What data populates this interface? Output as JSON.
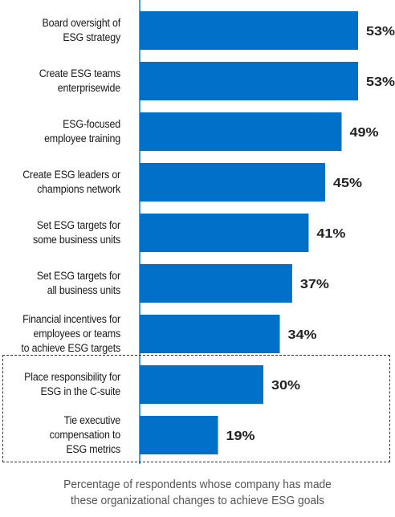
{
  "chart_data": {
    "type": "bar",
    "orientation": "horizontal",
    "categories": [
      [
        "Board oversight of",
        "ESG strategy"
      ],
      [
        "Create ESG teams",
        "enterprisewide"
      ],
      [
        "ESG-focused",
        "employee training"
      ],
      [
        "Create ESG leaders or",
        "champions network"
      ],
      [
        "Set ESG targets for",
        "some business units"
      ],
      [
        "Set ESG targets for",
        "all business units"
      ],
      [
        "Financial incentives for",
        "employees or teams",
        "to achieve ESG targets"
      ],
      [
        "Place responsibility for",
        "ESG in the C-suite"
      ],
      [
        "Tie executive",
        "compensation to",
        "ESG metrics"
      ]
    ],
    "values": [
      53,
      53,
      49,
      45,
      41,
      37,
      34,
      30,
      19
    ],
    "value_labels": [
      "53%",
      "53%",
      "49%",
      "45%",
      "41%",
      "37%",
      "34%",
      "30%",
      "19%"
    ],
    "highlighted_categories": [
      7,
      8
    ],
    "xlim": [
      0,
      53
    ],
    "grid": false,
    "bar_color": "#0070c9",
    "axis_color": "#1a75d2"
  },
  "caption": {
    "line1": "Percentage of respondents whose company has made",
    "line2": "these organizational changes to achieve ESG goals"
  }
}
